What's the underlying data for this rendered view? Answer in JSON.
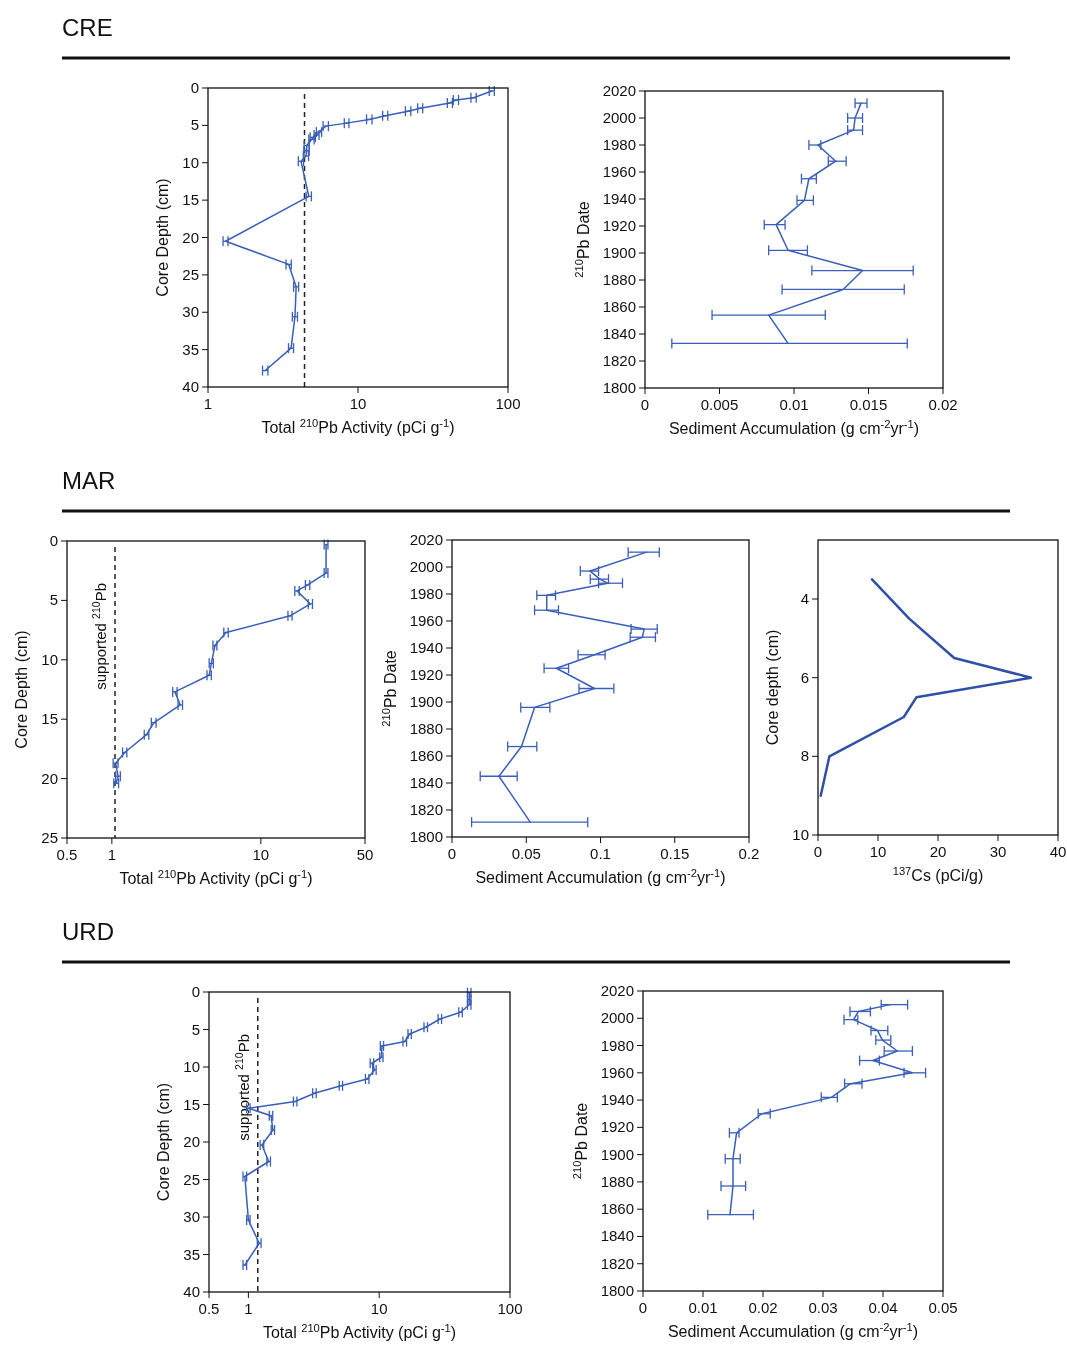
{
  "chart_data": [
    {
      "type": "line",
      "title": "CRE",
      "xlabel": "Total $^{210}$Pb Activity (pCi g$^{-1}$)",
      "ylabel": "Core Depth (cm)",
      "log": "x",
      "xlim": [
        1,
        100
      ],
      "xticks": [
        1,
        10,
        100
      ],
      "ylim": [
        40,
        0
      ],
      "yticks": [
        0,
        5,
        10,
        15,
        20,
        25,
        30,
        35,
        40
      ],
      "ref_lines": [
        {
          "axis": "x",
          "value": 4.4,
          "line_style": "dashed",
          "color": "#222222"
        }
      ],
      "series": [
        {
          "color": "#3a5fb8",
          "x": [
            78,
            59,
            45,
            41,
            26,
            21.6,
            15.2,
            11.9,
            8.4,
            6.1,
            5.5,
            5.3,
            5.0,
            4.9,
            4.55,
            4.55,
            4.5,
            4.17,
            4.7,
            1.31,
            3.45,
            3.87,
            3.8,
            3.58,
            2.41
          ],
          "values": [
            0.4,
            1.3,
            1.6,
            2.0,
            2.7,
            3.1,
            3.7,
            4.2,
            4.7,
            5.1,
            5.9,
            6.3,
            6.6,
            6.9,
            7.7,
            8.4,
            9.1,
            9.8,
            14.5,
            20.5,
            23.6,
            26.6,
            30.6,
            34.8,
            37.8
          ],
          "xerrors": [
            3,
            2.4,
            1.8,
            1.6,
            1,
            0.9,
            0.6,
            0.5,
            0.3,
            0.25,
            0.22,
            0.2,
            0.2,
            0.2,
            0.18,
            0.18,
            0.18,
            0.17,
            0.19,
            0.05,
            0.14,
            0.15,
            0.15,
            0.14,
            0.1
          ]
        }
      ]
    },
    {
      "type": "line",
      "xlabel": "Sediment Accumulation (g cm$^{-2}$yr$^{-1}$)",
      "ylabel": "$^{210}$Pb Date",
      "xlim": [
        0,
        0.02
      ],
      "xticks": [
        0,
        0.005,
        0.01,
        0.015,
        0.02
      ],
      "ylim": [
        1800,
        2020
      ],
      "yticks": [
        1800,
        1820,
        1840,
        1860,
        1880,
        1900,
        1920,
        1940,
        1960,
        1980,
        2000,
        2020
      ],
      "series": [
        {
          "color": "#3a5fb8",
          "x": [
            0.0145,
            0.0141,
            0.014,
            0.0116,
            0.0128,
            0.011,
            0.0107,
            0.0088,
            0.0096,
            0.0146,
            0.0133,
            0.0083,
            0.0096
          ],
          "values": [
            2011,
            2000,
            1991,
            1980,
            1968,
            1955,
            1939,
            1921,
            1902,
            1887,
            1873,
            1854,
            1833
          ],
          "xerrors": [
            [
              0.0141,
              0.0149
            ],
            [
              0.0136,
              0.0146
            ],
            [
              0.0136,
              0.0146
            ],
            [
              0.011,
              0.0118
            ],
            [
              0.0123,
              0.0135
            ],
            [
              0.0105,
              0.0115
            ],
            [
              0.0102,
              0.0113
            ],
            [
              0.008,
              0.0094
            ],
            [
              0.0083,
              0.0109
            ],
            [
              0.0112,
              0.018
            ],
            [
              0.0092,
              0.0174
            ],
            [
              0.0045,
              0.0121
            ],
            [
              0.0018,
              0.0176
            ]
          ]
        }
      ]
    },
    {
      "type": "line",
      "title": "MAR",
      "xlabel": "Total $^{210}$Pb Activity (pCi g$^{-1}$)",
      "ylabel": "Core Depth (cm)",
      "log": "x",
      "xlim": [
        0.5,
        50
      ],
      "xticks": [
        0.5,
        1,
        10,
        50
      ],
      "ylim": [
        25,
        0
      ],
      "yticks": [
        0,
        5,
        10,
        15,
        20,
        25
      ],
      "ref_lines": [
        {
          "axis": "x",
          "value": 1.05,
          "label": "supported $^{210}$Pb",
          "line_style": "dashed",
          "color": "#222222"
        }
      ],
      "series": [
        {
          "color": "#3a5fb8",
          "x": [
            27.4,
            27.4,
            20.6,
            17.5,
            21.5,
            15.7,
            5.84,
            4.92,
            4.65,
            4.5,
            2.65,
            2.88,
            1.91,
            1.71,
            1.22,
            1.06,
            1.1,
            1.07
          ],
          "values": [
            0.3,
            2.7,
            3.7,
            4.2,
            5.3,
            6.3,
            7.7,
            8.8,
            10.3,
            11.3,
            12.7,
            13.8,
            15.3,
            16.3,
            17.8,
            18.7,
            19.8,
            20.4
          ],
          "xerrors": [
            0.8,
            0.8,
            0.7,
            0.6,
            0.7,
            0.5,
            0.2,
            0.15,
            0.15,
            0.15,
            0.09,
            0.1,
            0.07,
            0.06,
            0.04,
            0.04,
            0.04,
            0.04
          ]
        }
      ]
    },
    {
      "type": "line",
      "xlabel": "Sediment Accumulation (g cm$^{-2}$yr$^{-1}$)",
      "ylabel": "$^{210}$Pb Date",
      "xlim": [
        0,
        0.2
      ],
      "xticks": [
        0,
        0.05,
        0.1,
        0.15,
        0.2
      ],
      "ylim": [
        1800,
        2020
      ],
      "yticks": [
        1800,
        1820,
        1840,
        1860,
        1880,
        1900,
        1920,
        1940,
        1960,
        1980,
        2000,
        2020
      ],
      "series": [
        {
          "color": "#3a5fb8",
          "x": [
            0.131,
            0.093,
            0.0996,
            0.1048,
            0.0638,
            0.0638,
            0.1294,
            0.1282,
            0.096,
            0.0703,
            0.096,
            0.0556,
            0.0468,
            0.0316,
            0.0527
          ],
          "values": [
            2011,
            1997,
            1991,
            1988,
            1979,
            1968,
            1954,
            1948,
            1935,
            1925,
            1910,
            1896,
            1867,
            1845,
            1811
          ],
          "xerrors": [
            [
              0.1186,
              0.1396
            ],
            [
              0.0864,
              0.0987
            ],
            [
              0.0931,
              0.1054
            ],
            [
              0.0987,
              0.1148
            ],
            [
              0.0571,
              0.0697
            ],
            [
              0.0556,
              0.0717
            ],
            [
              0.1206,
              0.1382
            ],
            [
              0.12,
              0.137
            ],
            [
              0.0849,
              0.1031
            ],
            [
              0.062,
              0.0785
            ],
            [
              0.0855,
              0.109
            ],
            [
              0.0463,
              0.0659
            ],
            [
              0.0375,
              0.0571
            ],
            [
              0.019,
              0.0439
            ],
            [
              0.0132,
              0.0914
            ]
          ]
        }
      ]
    },
    {
      "type": "line",
      "xlabel": "$^{137}$Cs (pCi/g)",
      "ylabel": "Core depth (cm)",
      "xlim": [
        0,
        40
      ],
      "xticks": [
        0,
        10,
        20,
        30,
        40
      ],
      "ylim": [
        10,
        2.5
      ],
      "yticks": [
        4,
        6,
        8,
        10
      ],
      "series": [
        {
          "color": "#2f4fa8",
          "x": [
            9.0,
            15.2,
            22.7,
            35.5,
            16.4,
            14.3,
            1.9,
            0.45
          ],
          "values": [
            3.5,
            4.5,
            5.5,
            6.0,
            6.5,
            7.0,
            8.0,
            9.0
          ]
        }
      ]
    },
    {
      "type": "line",
      "title": "URD",
      "xlabel": "Total $^{210}$Pb Activity (pCi g$^{-1}$)",
      "ylabel": "Core Depth (cm)",
      "log": "x",
      "xlim": [
        0.5,
        100
      ],
      "xticks": [
        0.5,
        1,
        10,
        100
      ],
      "ylim": [
        40,
        0
      ],
      "yticks": [
        0,
        5,
        10,
        15,
        20,
        25,
        30,
        35,
        40
      ],
      "ref_lines": [
        {
          "axis": "x",
          "value": 1.18,
          "label": "supported $^{210}$Pb",
          "line_style": "dashed",
          "color": "#222222"
        }
      ],
      "series": [
        {
          "color": "#3a5fb8",
          "x": [
            48.8,
            48.8,
            48.8,
            41.9,
            29.1,
            22.7,
            17.1,
            15.7,
            10.5,
            10.4,
            8.8,
            9.2,
            8.1,
            5.1,
            3.2,
            2.28,
            1.0,
            1.49,
            1.54,
            1.27,
            1.43,
            0.94,
            1.0,
            1.21,
            0.94
          ],
          "values": [
            0.1,
            1.0,
            1.7,
            2.7,
            3.6,
            4.7,
            5.6,
            6.6,
            7.2,
            8.7,
            9.5,
            10.4,
            11.6,
            12.5,
            13.5,
            14.6,
            15.5,
            16.5,
            18.4,
            20.4,
            22.6,
            24.6,
            30.4,
            33.5,
            36.4
          ],
          "xerrors": [
            1.5,
            1.5,
            1.5,
            1.3,
            0.9,
            0.7,
            0.5,
            0.5,
            0.3,
            0.3,
            0.27,
            0.28,
            0.25,
            0.15,
            0.1,
            0.07,
            0.03,
            0.045,
            0.045,
            0.04,
            0.045,
            0.03,
            0.03,
            0.04,
            0.03
          ]
        }
      ]
    },
    {
      "type": "line",
      "xlabel": "Sediment Accumulation (g cm$^{-2}$yr$^{-1}$)",
      "ylabel": "$^{210}$Pb Date",
      "xlim": [
        0,
        0.05
      ],
      "xticks": [
        0,
        0.01,
        0.02,
        0.03,
        0.04,
        0.05
      ],
      "ylim": [
        1800,
        2020
      ],
      "yticks": [
        1800,
        1820,
        1840,
        1860,
        1880,
        1900,
        1920,
        1940,
        1960,
        1980,
        2000,
        2020
      ],
      "series": [
        {
          "color": "#3a5fb8",
          "x": [
            0.0412,
            0.0359,
            0.0351,
            0.0391,
            0.0399,
            0.0424,
            0.0383,
            0.0449,
            0.0346,
            0.0314,
            0.0198,
            0.0156,
            0.015,
            0.015,
            0.0145
          ],
          "values": [
            2010,
            2005,
            1999,
            1991,
            1984,
            1976,
            1969,
            1960,
            1952,
            1942,
            1930,
            1916,
            1897,
            1877,
            1856
          ],
          "xerrors": [
            [
              0.0397,
              0.0441
            ],
            [
              0.0345,
              0.0379
            ],
            [
              0.0335,
              0.0358
            ],
            [
              0.038,
              0.0408
            ],
            [
              0.0388,
              0.0413
            ],
            [
              0.0402,
              0.0449
            ],
            [
              0.0361,
              0.0394
            ],
            [
              0.0435,
              0.0471
            ],
            [
              0.0336,
              0.0365
            ],
            [
              0.0297,
              0.0324
            ],
            [
              0.0192,
              0.0212
            ],
            [
              0.0144,
              0.016
            ],
            [
              0.0137,
              0.0162
            ],
            [
              0.013,
              0.0171
            ],
            [
              0.0108,
              0.0184
            ]
          ]
        }
      ]
    }
  ]
}
